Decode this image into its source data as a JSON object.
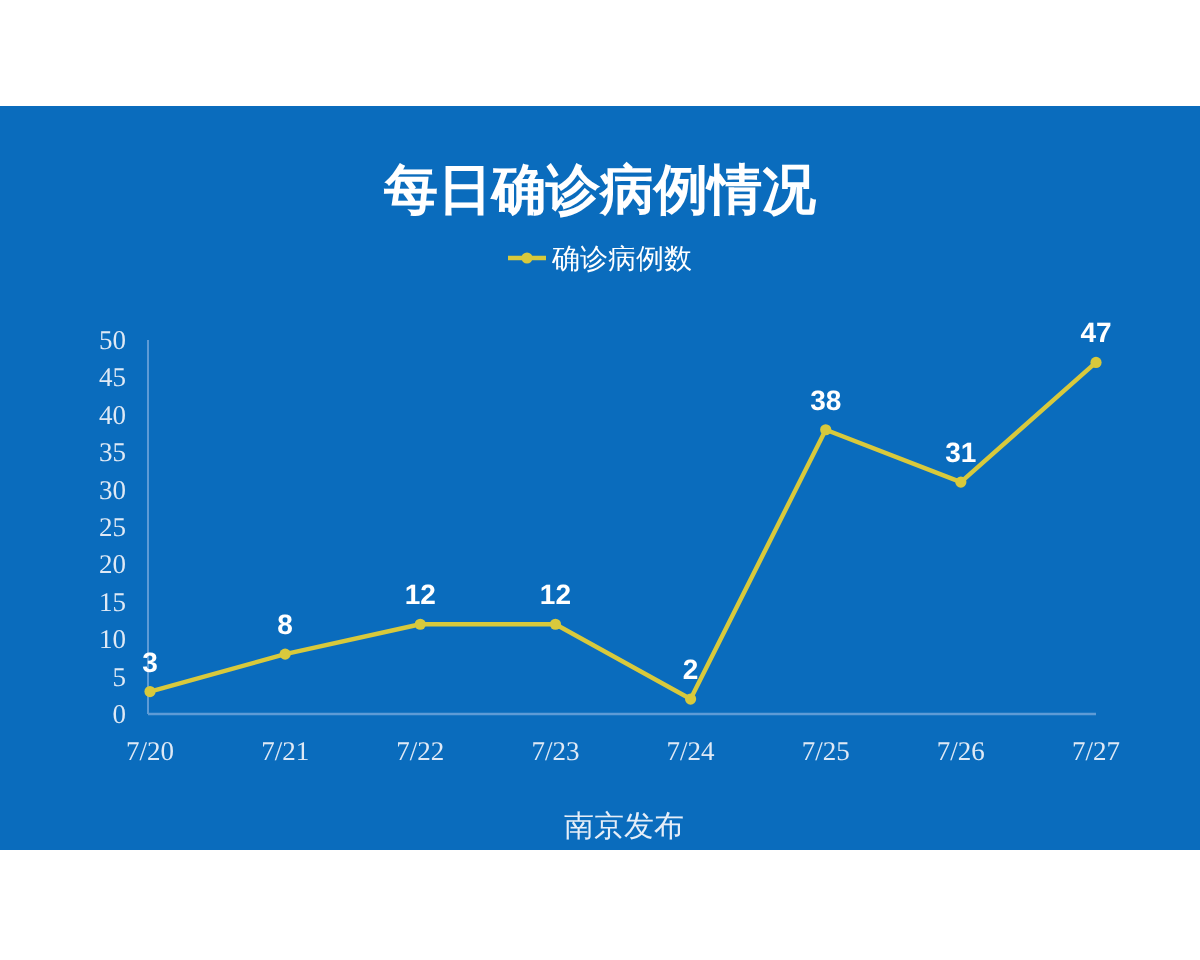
{
  "chart_data": {
    "type": "line",
    "title": "每日确诊病例情况",
    "categories": [
      "7/20",
      "7/21",
      "7/22",
      "7/23",
      "7/24",
      "7/25",
      "7/26",
      "7/27"
    ],
    "series": [
      {
        "name": "确诊病例数",
        "color": "#d8c93c",
        "values": [
          3,
          8,
          12,
          12,
          2,
          38,
          31,
          47
        ]
      }
    ],
    "ylim": [
      0,
      50
    ],
    "yticks": [
      0,
      5,
      10,
      15,
      20,
      25,
      30,
      35,
      40,
      45,
      50
    ],
    "data_labels": true,
    "legend": "top",
    "marker": "circle",
    "line_style": "solid",
    "annotations": [
      "南京发布"
    ]
  }
}
